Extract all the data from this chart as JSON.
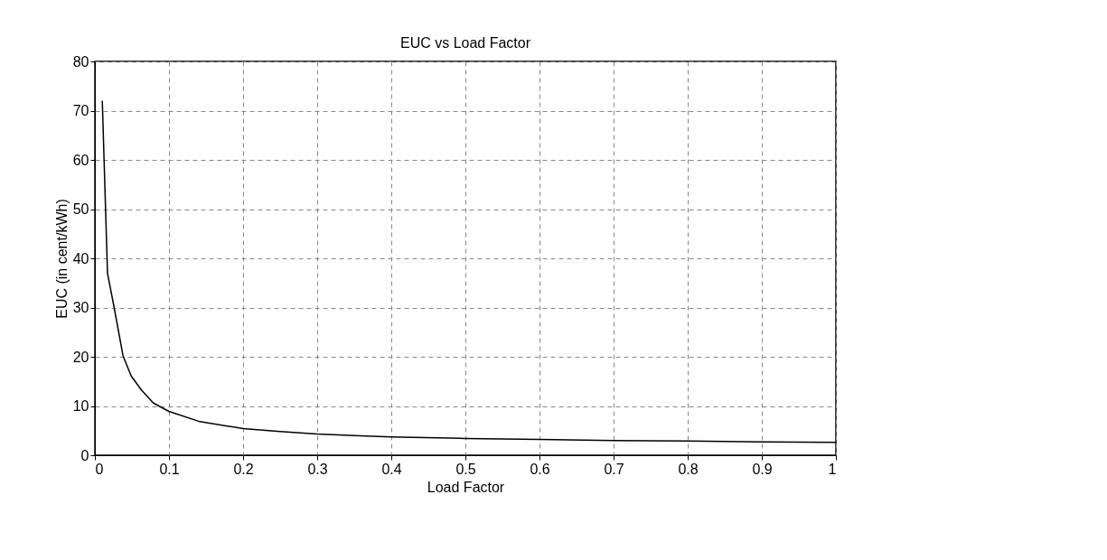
{
  "chart_data": {
    "type": "line",
    "title": "EUC vs Load Factor",
    "xlabel": "Load Factor",
    "ylabel": "EUC (in cent/kWh)",
    "series": [
      {
        "color": "#000000",
        "x": [
          0.01,
          0.017,
          0.026,
          0.038,
          0.049,
          0.063,
          0.079,
          0.1,
          0.14,
          0.2,
          0.25,
          0.3,
          0.35,
          0.4,
          0.5,
          0.6,
          0.7,
          0.8,
          0.9,
          1.0
        ],
        "values": [
          72,
          37,
          30,
          20.2,
          16.1,
          13.2,
          10.6,
          8.9,
          6.9,
          5.4,
          4.8,
          4.3,
          4.0,
          3.7,
          3.4,
          3.2,
          3.0,
          2.9,
          2.7,
          2.6
        ]
      }
    ],
    "xlim": [
      0,
      1
    ],
    "xticks": [
      0,
      0.1,
      0.2,
      0.3,
      0.4,
      0.5,
      0.6,
      0.7,
      0.8,
      0.9,
      1
    ],
    "ylim": [
      0,
      80
    ],
    "yticks": [
      0,
      10,
      20,
      30,
      40,
      50,
      60,
      70,
      80
    ],
    "grid": true,
    "legend": false,
    "marker": "none",
    "line_style": "solid"
  }
}
